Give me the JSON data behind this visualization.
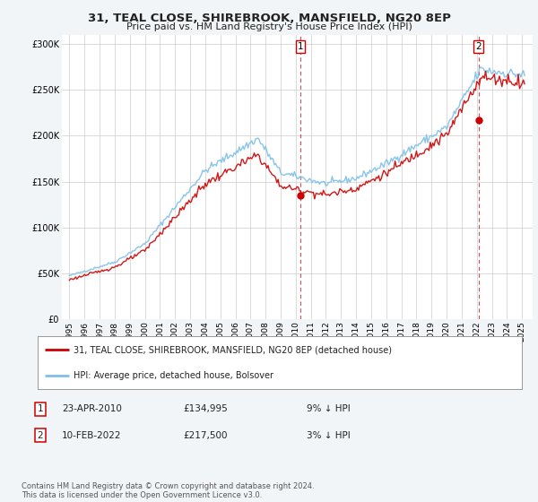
{
  "title": "31, TEAL CLOSE, SHIREBROOK, MANSFIELD, NG20 8EP",
  "subtitle": "Price paid vs. HM Land Registry's House Price Index (HPI)",
  "legend_line1": "31, TEAL CLOSE, SHIREBROOK, MANSFIELD, NG20 8EP (detached house)",
  "legend_line2": "HPI: Average price, detached house, Bolsover",
  "note": "Contains HM Land Registry data © Crown copyright and database right 2024.\nThis data is licensed under the Open Government Licence v3.0.",
  "sale1_label": "1",
  "sale1_date": "23-APR-2010",
  "sale1_price": "£134,995",
  "sale1_hpi": "9% ↓ HPI",
  "sale2_label": "2",
  "sale2_date": "10-FEB-2022",
  "sale2_price": "£217,500",
  "sale2_hpi": "3% ↓ HPI",
  "hpi_color": "#7bbfea",
  "price_color": "#cc0000",
  "sale1_x": 2010.31,
  "sale1_y": 134995,
  "sale2_x": 2022.12,
  "sale2_y": 217500,
  "ylim": [
    0,
    310000
  ],
  "xlim_start": 1994.5,
  "xlim_end": 2025.7,
  "background_color": "#f2f5f8",
  "plot_bg_color": "#ffffff",
  "yticks": [
    0,
    50000,
    100000,
    150000,
    200000,
    250000,
    300000
  ],
  "ytick_labels": [
    "£0",
    "£50K",
    "£100K",
    "£150K",
    "£200K",
    "£250K",
    "£300K"
  ],
  "xticks": [
    1995,
    1996,
    1997,
    1998,
    1999,
    2000,
    2001,
    2002,
    2003,
    2004,
    2005,
    2006,
    2007,
    2008,
    2009,
    2010,
    2011,
    2012,
    2013,
    2014,
    2015,
    2016,
    2017,
    2018,
    2019,
    2020,
    2021,
    2022,
    2023,
    2024,
    2025
  ]
}
